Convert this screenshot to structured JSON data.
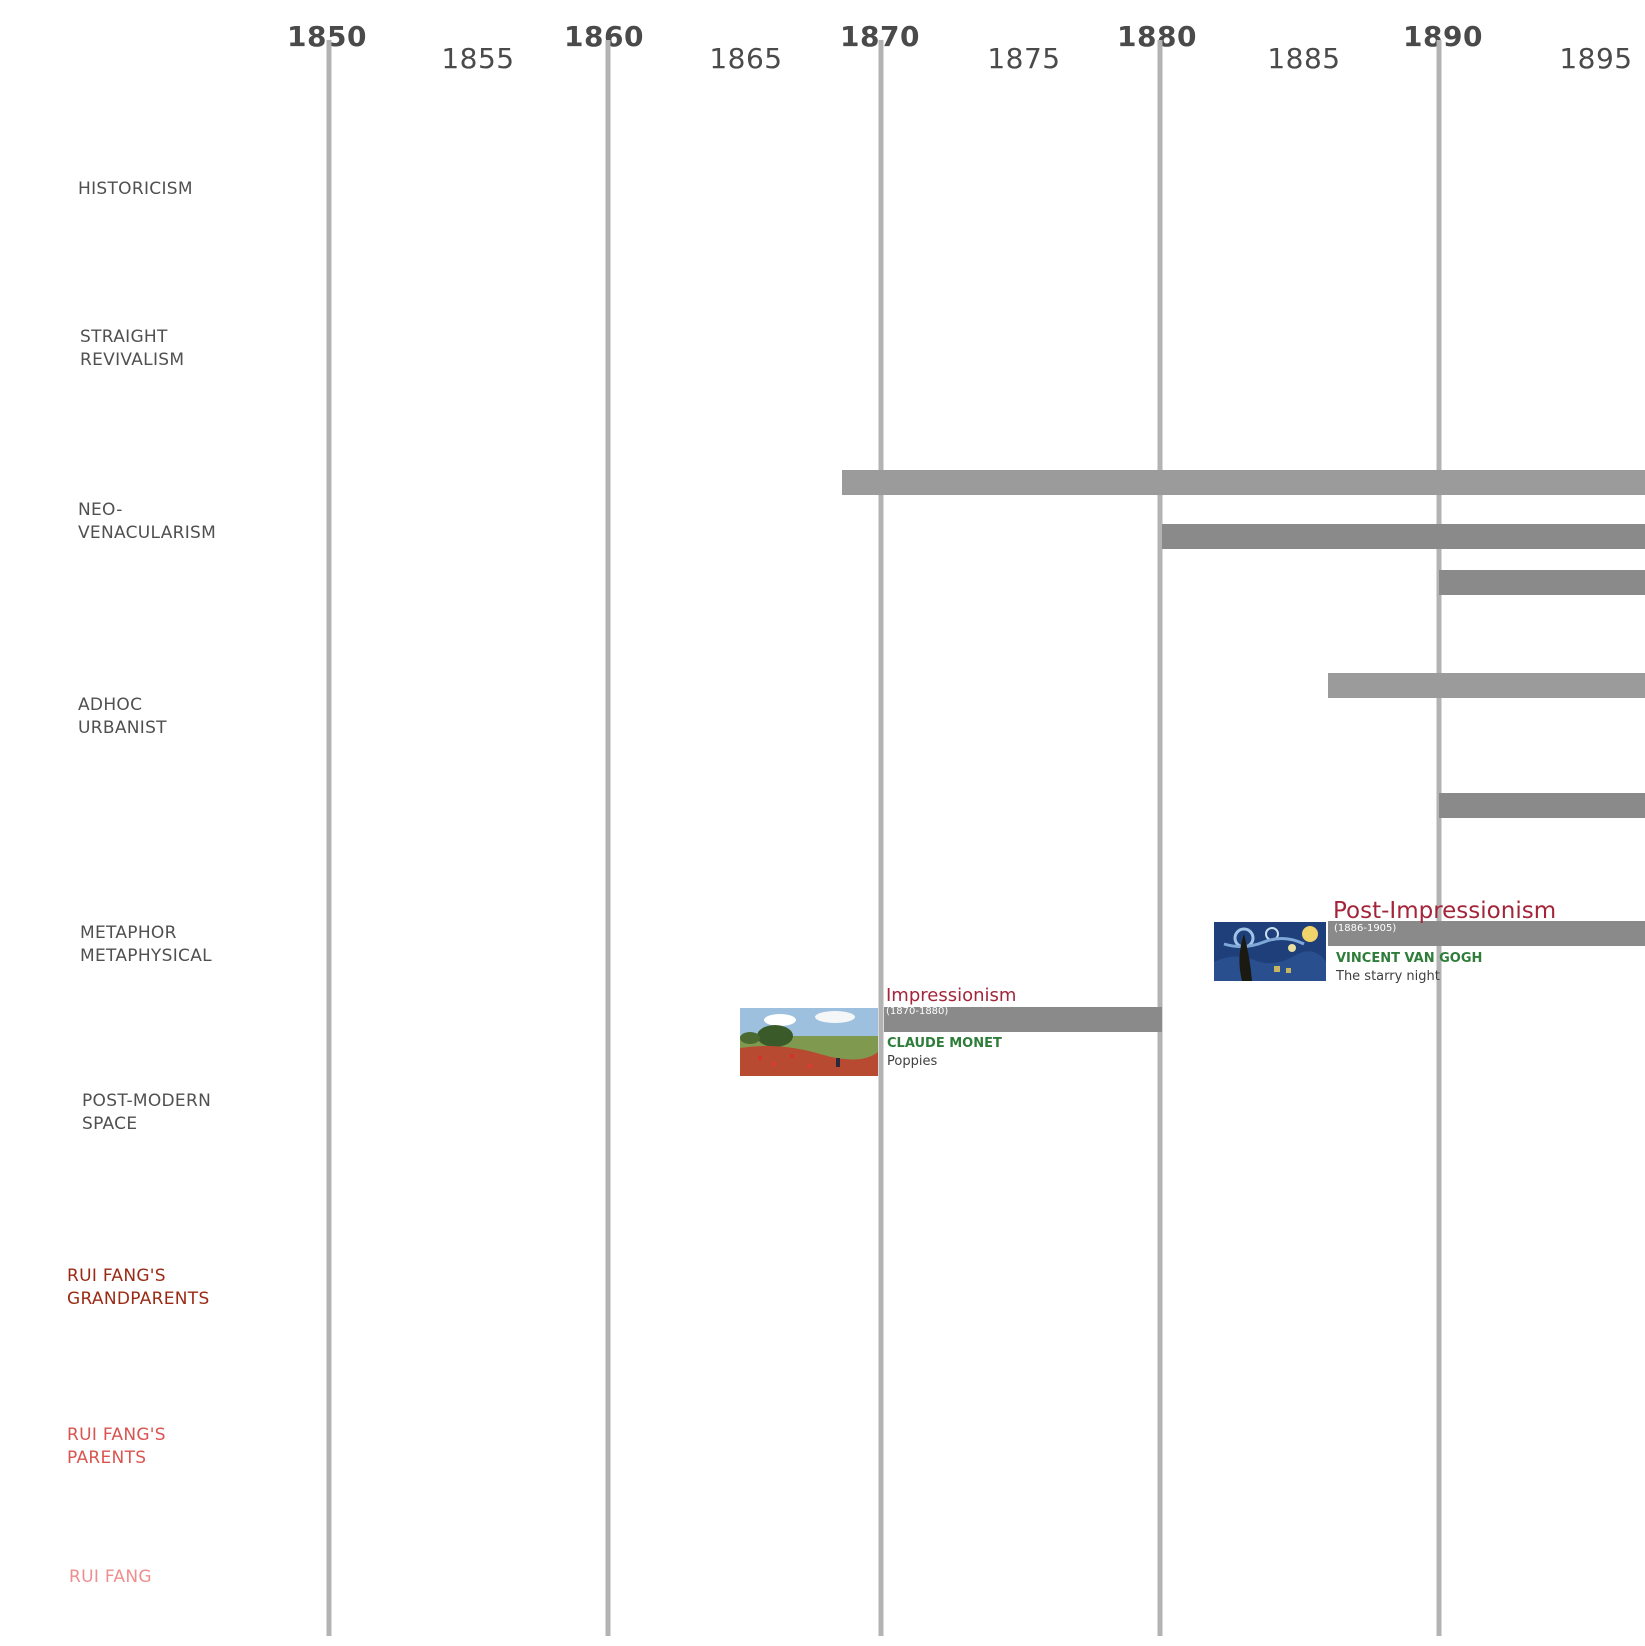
{
  "timeline": {
    "start_year": 1850,
    "end_year": 1895,
    "major_years": [
      "1850",
      "1860",
      "1870",
      "1880",
      "1890"
    ],
    "minor_years": [
      "1855",
      "1865",
      "1875",
      "1885",
      "1895"
    ],
    "gridline_color": "#b3b3b3"
  },
  "rows": [
    {
      "label": "HISTORICISM",
      "color": "#505050"
    },
    {
      "label": "STRAIGHT\nREVIVALISM",
      "color": "#505050"
    },
    {
      "label": "NEO-\nVENACULARISM",
      "color": "#505050"
    },
    {
      "label": "ADHOC\nURBANIST",
      "color": "#505050"
    },
    {
      "label": "METAPHOR\nMETAPHYSICAL",
      "color": "#505050"
    },
    {
      "label": "POST-MODERN\nSPACE",
      "color": "#505050"
    },
    {
      "label": "RUI FANG'S\nGRANDPARENTS",
      "color": "#9b2a14"
    },
    {
      "label": "RUI FANG'S\nPARENTS",
      "color": "#d9544f"
    },
    {
      "label": "RUI FANG",
      "color": "#ee8f8f"
    }
  ],
  "bars": [
    {
      "start": 1868.5,
      "end": 1895,
      "shade": "light"
    },
    {
      "start": 1880,
      "end": 1895,
      "shade": "dark"
    },
    {
      "start": 1890,
      "end": 1895,
      "shade": "dark"
    },
    {
      "start": 1886,
      "end": 1895,
      "shade": "light"
    },
    {
      "start": 1890,
      "end": 1895,
      "shade": "dark"
    },
    {
      "start": 1886,
      "end": 1895,
      "shade": "dark"
    },
    {
      "start": 1870,
      "end": 1880,
      "shade": "dark"
    }
  ],
  "movements": [
    {
      "title": "Post-Impressionism",
      "dates": "(1886-1905)",
      "artist": "VINCENT VAN GOGH",
      "work": "The starry night",
      "painting_icon": "starry-night-painting"
    },
    {
      "title": "Impressionism",
      "dates": "(1870-1880)",
      "artist": "CLAUDE MONET",
      "work": "Poppies",
      "painting_icon": "poppies-painting"
    }
  ],
  "colors": {
    "movement_title": "#a3253a",
    "artist_name": "#2f7d3a",
    "bar_light": "#9b9b9b",
    "bar_dark": "#8a8a8a"
  }
}
